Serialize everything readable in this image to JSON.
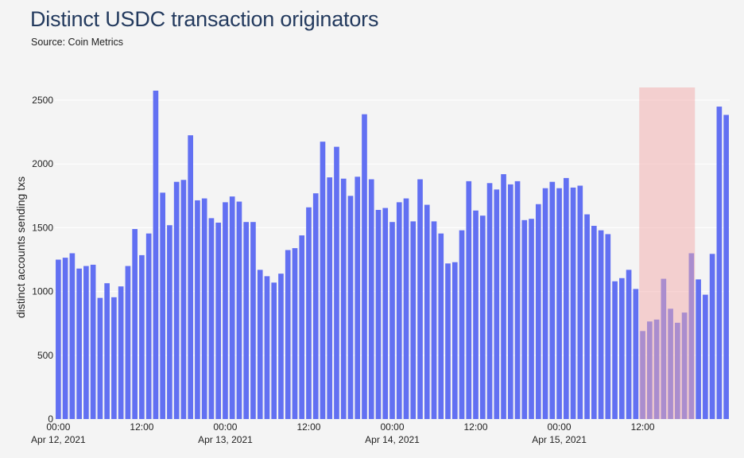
{
  "chart_data": {
    "type": "bar",
    "title": "Distinct USDC transaction originators",
    "subtitle": "Source: Coin Metrics",
    "ylabel": "distinct accounts sending txs",
    "xlabel": "",
    "x_start": "2021-04-12T00:00",
    "bar_interval_hours": 1,
    "ylim": [
      0,
      2600
    ],
    "yticks": [
      0,
      500,
      1000,
      1500,
      2000,
      2500
    ],
    "xticks": [
      {
        "hours": 0,
        "line1": "00:00",
        "line2": "Apr 12, 2021"
      },
      {
        "hours": 12,
        "line1": "12:00",
        "line2": ""
      },
      {
        "hours": 24,
        "line1": "00:00",
        "line2": "Apr 13, 2021"
      },
      {
        "hours": 36,
        "line1": "12:00",
        "line2": ""
      },
      {
        "hours": 48,
        "line1": "00:00",
        "line2": "Apr 14, 2021"
      },
      {
        "hours": 60,
        "line1": "12:00",
        "line2": ""
      },
      {
        "hours": 72,
        "line1": "00:00",
        "line2": "Apr 15, 2021"
      },
      {
        "hours": 84,
        "line1": "12:00",
        "line2": ""
      }
    ],
    "highlight": {
      "start_hours": 83.5,
      "end_hours": 91.5,
      "color": "#f2a9a9",
      "opacity": 0.5
    },
    "bar_color": "#6270f2",
    "grid": true,
    "values": [
      1250,
      1265,
      1300,
      1180,
      1200,
      1210,
      950,
      1065,
      955,
      1040,
      1200,
      1490,
      1285,
      1455,
      2575,
      1775,
      1520,
      1860,
      1875,
      2225,
      1715,
      1730,
      1575,
      1540,
      1700,
      1745,
      1705,
      1545,
      1545,
      1170,
      1120,
      1070,
      1140,
      1325,
      1340,
      1440,
      1660,
      1770,
      2175,
      1895,
      2135,
      1885,
      1750,
      1900,
      2390,
      1880,
      1640,
      1655,
      1545,
      1700,
      1730,
      1550,
      1880,
      1680,
      1550,
      1455,
      1220,
      1230,
      1480,
      1865,
      1635,
      1595,
      1850,
      1800,
      1920,
      1840,
      1865,
      1560,
      1570,
      1685,
      1810,
      1860,
      1810,
      1890,
      1815,
      1830,
      1605,
      1515,
      1480,
      1450,
      1080,
      1105,
      1170,
      1020,
      690,
      765,
      780,
      1100,
      865,
      755,
      835,
      1300,
      1095,
      975,
      1295,
      2450,
      2385
    ]
  }
}
